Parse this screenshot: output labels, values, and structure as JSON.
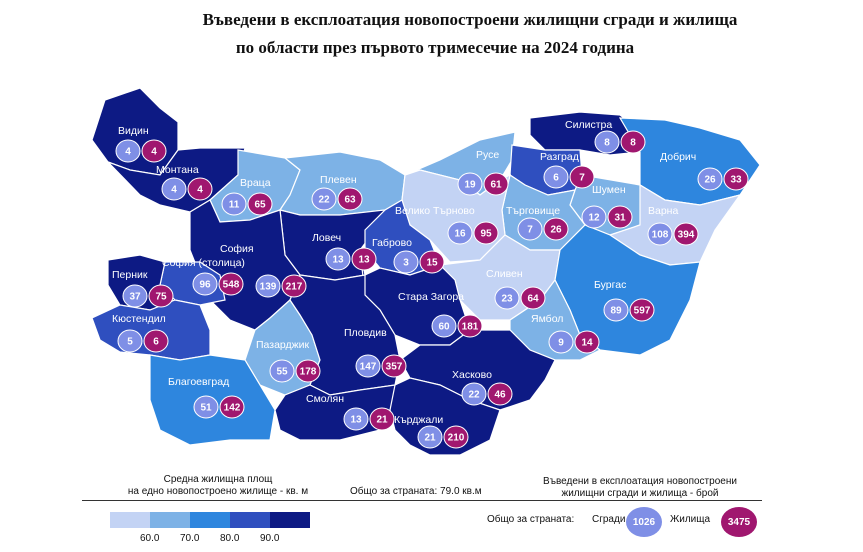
{
  "title": {
    "line1": "Въведени в експлоатация новопостроени жилищни сгради и жилища",
    "line2": "по области през първото тримесечие на 2024 година"
  },
  "colors": {
    "c1": "#c3d3f4",
    "c2": "#7db2e6",
    "c3": "#2e86de",
    "c4": "#2f4fbf",
    "c5": "#0d1a84",
    "buildings_bubble": "#7f8fe6",
    "dwellings_bubble": "#a0176f"
  },
  "regions": [
    {
      "name": "Видин",
      "buildings": "4",
      "dwellings": "4",
      "cls": "c5"
    },
    {
      "name": "Монтана",
      "buildings": "4",
      "dwellings": "4",
      "cls": "c5"
    },
    {
      "name": "Враца",
      "buildings": "11",
      "dwellings": "65",
      "cls": "c2"
    },
    {
      "name": "Плевен",
      "buildings": "22",
      "dwellings": "63",
      "cls": "c2"
    },
    {
      "name": "Русе",
      "buildings": "19",
      "dwellings": "61",
      "cls": "c2"
    },
    {
      "name": "Силистра",
      "buildings": "8",
      "dwellings": "8",
      "cls": "c5"
    },
    {
      "name": "Разград",
      "buildings": "6",
      "dwellings": "7",
      "cls": "c4"
    },
    {
      "name": "Добрич",
      "buildings": "26",
      "dwellings": "33",
      "cls": "c3"
    },
    {
      "name": "Шумен",
      "buildings": "12",
      "dwellings": "31",
      "cls": "c2"
    },
    {
      "name": "Търговище",
      "buildings": "7",
      "dwellings": "26",
      "cls": "c2"
    },
    {
      "name": "Велико Търново",
      "buildings": "16",
      "dwellings": "95",
      "cls": "c1"
    },
    {
      "name": "Ловеч",
      "buildings": "13",
      "dwellings": "13",
      "cls": "c5"
    },
    {
      "name": "Габрово",
      "buildings": "3",
      "dwellings": "15",
      "cls": "c4"
    },
    {
      "name": "Варна",
      "buildings": "108",
      "dwellings": "394",
      "cls": "c1"
    },
    {
      "name": "София",
      "buildings": "139",
      "dwellings": "217",
      "cls": "c5"
    },
    {
      "name": "София (столица)",
      "buildings": "96",
      "dwellings": "548",
      "cls": "c4"
    },
    {
      "name": "Перник",
      "buildings": "37",
      "dwellings": "75",
      "cls": "c5"
    },
    {
      "name": "Кюстендил",
      "buildings": "5",
      "dwellings": "6",
      "cls": "c4"
    },
    {
      "name": "Сливен",
      "buildings": "23",
      "dwellings": "64",
      "cls": "c1"
    },
    {
      "name": "Бургас",
      "buildings": "89",
      "dwellings": "597",
      "cls": "c3"
    },
    {
      "name": "Стара Загора",
      "buildings": "60",
      "dwellings": "181",
      "cls": "c5"
    },
    {
      "name": "Ямбол",
      "buildings": "9",
      "dwellings": "14",
      "cls": "c2"
    },
    {
      "name": "Пазарджик",
      "buildings": "55",
      "dwellings": "178",
      "cls": "c2"
    },
    {
      "name": "Пловдив",
      "buildings": "147",
      "dwellings": "357",
      "cls": "c5"
    },
    {
      "name": "Хасково",
      "buildings": "22",
      "dwellings": "46",
      "cls": "c5"
    },
    {
      "name": "Благоевград",
      "buildings": "51",
      "dwellings": "142",
      "cls": "c3"
    },
    {
      "name": "Смолян",
      "buildings": "13",
      "dwellings": "21",
      "cls": "c5"
    },
    {
      "name": "Кърджали",
      "buildings": "21",
      "dwellings": "210",
      "cls": "c5"
    }
  ],
  "legend": {
    "area_title_line1": "Средна жилищна площ",
    "area_title_line2": "на едно новопостроено жилище - кв. м",
    "avg_text": "Общо за страната: 79.0 кв.м",
    "count_title_line1": "Въведени в експлоатация новопостроени",
    "count_title_line2": "жилищни сгради и жилища - брой",
    "scale_ticks": [
      "60.0",
      "70.0",
      "80.0",
      "90.0"
    ],
    "totals_label": "Общо за страната:",
    "buildings_label": "Сгради",
    "dwellings_label": "Жилища",
    "total_buildings": "1026",
    "total_dwellings": "3475"
  }
}
